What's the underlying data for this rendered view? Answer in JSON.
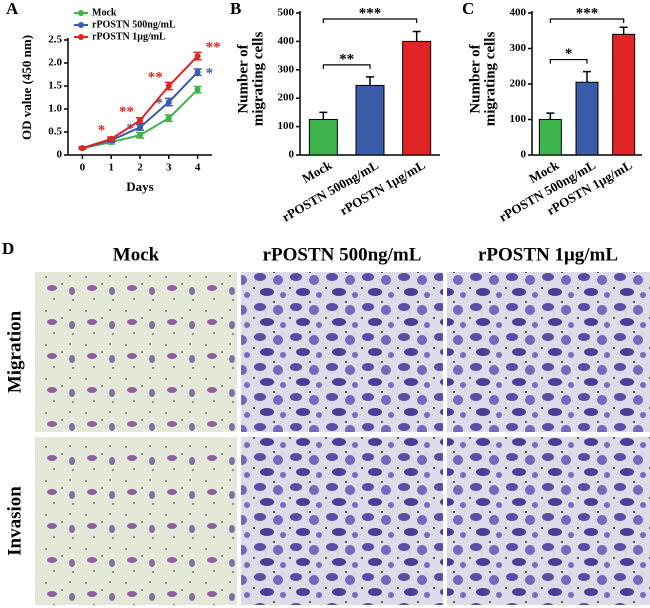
{
  "chart_data": [
    {
      "type": "line",
      "label": "A",
      "xlabel": "Days",
      "ylabel": "OD value (450 nm)",
      "x": [
        0,
        1,
        2,
        3,
        4
      ],
      "xlim": [
        -0.5,
        4.5
      ],
      "xticks": [
        0,
        1,
        2,
        3,
        4
      ],
      "ylim": [
        0,
        2.5
      ],
      "yticks": [
        0,
        0.5,
        {
          "value": 1,
          "label": "1.0"
        },
        1.5,
        {
          "value": 2,
          "label": "2.0"
        },
        2.5
      ],
      "series": [
        {
          "name": "Mock",
          "color": "#3cb44b",
          "values": [
            0.15,
            0.28,
            0.43,
            0.8,
            1.42
          ],
          "errors": [
            0.02,
            0.04,
            0.06,
            0.07,
            0.07
          ],
          "significance": [
            null,
            null,
            null,
            null,
            null
          ]
        },
        {
          "name": "rPOSTN 500ng/mL",
          "color": "#3a5ba8",
          "values": [
            0.15,
            0.32,
            0.6,
            1.15,
            1.8
          ],
          "errors": [
            0.02,
            0.04,
            0.06,
            0.08,
            0.07
          ],
          "significance": [
            null,
            null,
            "*",
            "*",
            "*"
          ]
        },
        {
          "name": "rPOSTN 1μg/mL",
          "color": "#e02424",
          "values": [
            0.15,
            0.35,
            0.75,
            1.5,
            2.15
          ],
          "errors": [
            0.02,
            0.04,
            0.06,
            0.08,
            0.08
          ],
          "significance": [
            null,
            "*",
            "**",
            "**",
            "**"
          ]
        }
      ]
    },
    {
      "type": "bar",
      "label": "B",
      "ylabel": [
        "Number of",
        "migrating cells"
      ],
      "categories": [
        "Mock",
        "rPOSTN 500ng/mL",
        "rPOSTN 1μg/mL"
      ],
      "values": [
        125,
        245,
        400
      ],
      "errors": [
        25,
        30,
        35
      ],
      "colors": [
        "#3cb44b",
        "#3a5ba8",
        "#e02424"
      ],
      "ylim": [
        0,
        500
      ],
      "yticks": [
        0,
        100,
        200,
        300,
        400,
        500
      ],
      "comparisons": [
        {
          "from": 0,
          "to": 1,
          "label": "**"
        },
        {
          "from": 0,
          "to": 2,
          "label": "***"
        }
      ]
    },
    {
      "type": "bar",
      "label": "C",
      "ylabel": [
        "Number of",
        "migrating cells"
      ],
      "categories": [
        "Mock",
        "rPOSTN 500ng/mL",
        "rPOSTN 1μg/mL"
      ],
      "values": [
        100,
        205,
        340
      ],
      "errors": [
        18,
        30,
        20
      ],
      "colors": [
        "#3cb44b",
        "#3a5ba8",
        "#e02424"
      ],
      "ylim": [
        0,
        400
      ],
      "yticks": [
        0,
        100,
        200,
        300,
        400
      ],
      "comparisons": [
        {
          "from": 0,
          "to": 1,
          "label": "*"
        },
        {
          "from": 0,
          "to": 2,
          "label": "***"
        }
      ]
    }
  ],
  "panel_d": {
    "label": "D",
    "columns": [
      "Mock",
      "rPOSTN 500ng/mL",
      "rPOSTN 1μg/mL"
    ],
    "rows": [
      "Migration",
      "Invasion"
    ]
  }
}
